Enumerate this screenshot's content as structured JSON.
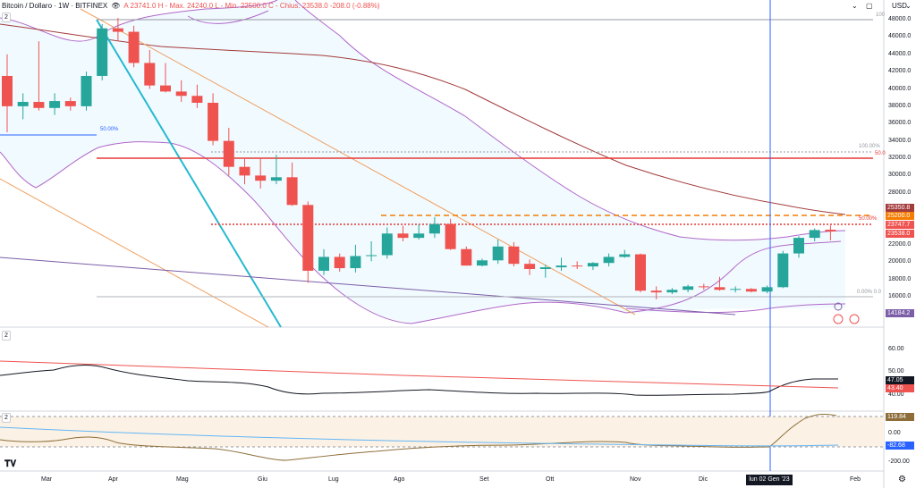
{
  "header": {
    "symbol": "Bitcoin / Dollaro · 1W · BITFINEX",
    "ohlc": "A 23741.0  H - Max. 24240.0  L - Min. 22500.0  C - Chius. 23538.0  -208.0 (-0.88%)",
    "currency": "USD",
    "pane_tag_main": "2",
    "pane_tag_osc1": "2",
    "pane_tag_osc2": "2"
  },
  "colors": {
    "bull": "#26a69a",
    "bear": "#ef5350",
    "bb": "#b068c8",
    "ma": "#a33b3b",
    "trend_cyan": "#25b9d0",
    "trend_orange": "#f0a060",
    "fib": "#e06030",
    "cursor": "#2962ff"
  },
  "price_axis": {
    "ticks": [
      "48000.0",
      "46000.0",
      "44000.0",
      "42000.0",
      "40000.0",
      "38000.0",
      "36000.0",
      "34000.0",
      "32000.0",
      "30000.0",
      "28000.0",
      "26000.0",
      "22000.0",
      "20000.0",
      "18000.0",
      "16000.0"
    ],
    "badges": [
      {
        "text": "25350.8",
        "color": "#a33b3b"
      },
      {
        "text": "25200.0",
        "color": "#f57c00"
      },
      {
        "text": "23747.7",
        "color": "#ef5350"
      },
      {
        "text": "23538.0",
        "color": "#ef5350"
      },
      {
        "text": "14184.2",
        "color": "#7b5ea7"
      }
    ],
    "tag_100": "100",
    "fib_100": "100.00%",
    "fib_50": "50.00%",
    "fib_50_right": "50.0",
    "fib_0": "0.00% 0.0",
    "left_fib_50": "50.00%"
  },
  "osc1": {
    "ticks": [
      "60.00",
      "50.00",
      "40.00"
    ],
    "badges": [
      {
        "text": "47.05",
        "color": "#131722"
      },
      {
        "text": "43.40",
        "color": "#ef5350"
      }
    ]
  },
  "osc2": {
    "ticks": [
      "0.00",
      "-200.00"
    ],
    "badges": [
      {
        "text": "119.84",
        "color": "#8d6e3a"
      },
      {
        "text": "-82.68",
        "color": "#2962ff"
      }
    ]
  },
  "time_axis": {
    "months": [
      "Mar",
      "Apr",
      "Mag",
      "Giu",
      "Lug",
      "Ago",
      "Set",
      "Ott",
      "Nov",
      "Dic",
      "Feb"
    ],
    "cursor_label": "lun 02 Gen '23"
  },
  "chart_data": {
    "type": "candlestick",
    "title": "Bitcoin / Dollaro · 1W · BITFINEX",
    "ylim": [
      13500,
      49000
    ],
    "candles": [
      {
        "o": 41500,
        "h": 44000,
        "l": 35000,
        "c": 38000
      },
      {
        "o": 38000,
        "h": 39500,
        "l": 36500,
        "c": 38500
      },
      {
        "o": 38500,
        "h": 45500,
        "l": 37500,
        "c": 37800
      },
      {
        "o": 37800,
        "h": 39500,
        "l": 37000,
        "c": 38600
      },
      {
        "o": 38600,
        "h": 39000,
        "l": 37500,
        "c": 38000
      },
      {
        "o": 38000,
        "h": 42000,
        "l": 37500,
        "c": 41500
      },
      {
        "o": 41500,
        "h": 47500,
        "l": 41000,
        "c": 47000
      },
      {
        "o": 47000,
        "h": 48200,
        "l": 45500,
        "c": 46600
      },
      {
        "o": 46600,
        "h": 47300,
        "l": 42500,
        "c": 43000
      },
      {
        "o": 43000,
        "h": 44500,
        "l": 40000,
        "c": 40400
      },
      {
        "o": 40400,
        "h": 43000,
        "l": 39600,
        "c": 39700
      },
      {
        "o": 39700,
        "h": 41000,
        "l": 38500,
        "c": 39200
      },
      {
        "o": 39200,
        "h": 40500,
        "l": 37800,
        "c": 38400
      },
      {
        "o": 38400,
        "h": 39500,
        "l": 33500,
        "c": 34000
      },
      {
        "o": 34000,
        "h": 35500,
        "l": 30000,
        "c": 31000
      },
      {
        "o": 31000,
        "h": 32000,
        "l": 29000,
        "c": 30000
      },
      {
        "o": 30000,
        "h": 32000,
        "l": 28500,
        "c": 29400
      },
      {
        "o": 29400,
        "h": 32400,
        "l": 29000,
        "c": 29800
      },
      {
        "o": 29800,
        "h": 31500,
        "l": 26500,
        "c": 26600
      },
      {
        "o": 26600,
        "h": 27000,
        "l": 17600,
        "c": 19000
      },
      {
        "o": 19000,
        "h": 21500,
        "l": 18500,
        "c": 20600
      },
      {
        "o": 20600,
        "h": 21000,
        "l": 18900,
        "c": 19300
      },
      {
        "o": 19300,
        "h": 22000,
        "l": 18800,
        "c": 20700
      },
      {
        "o": 20700,
        "h": 22400,
        "l": 20100,
        "c": 20800
      },
      {
        "o": 20800,
        "h": 24000,
        "l": 20400,
        "c": 23300
      },
      {
        "o": 23300,
        "h": 24200,
        "l": 22400,
        "c": 22800
      },
      {
        "o": 22800,
        "h": 24400,
        "l": 22600,
        "c": 23300
      },
      {
        "o": 23300,
        "h": 25200,
        "l": 22800,
        "c": 24400
      },
      {
        "o": 24400,
        "h": 25000,
        "l": 21400,
        "c": 21500
      },
      {
        "o": 21500,
        "h": 21800,
        "l": 19600,
        "c": 19600
      },
      {
        "o": 19600,
        "h": 20400,
        "l": 19500,
        "c": 20200
      },
      {
        "o": 20200,
        "h": 22600,
        "l": 19800,
        "c": 21800
      },
      {
        "o": 21800,
        "h": 22300,
        "l": 19500,
        "c": 19800
      },
      {
        "o": 19800,
        "h": 20300,
        "l": 18500,
        "c": 19200
      },
      {
        "o": 19200,
        "h": 19700,
        "l": 18200,
        "c": 19400
      },
      {
        "o": 19400,
        "h": 20500,
        "l": 19000,
        "c": 19600
      },
      {
        "o": 19600,
        "h": 20100,
        "l": 19200,
        "c": 19500
      },
      {
        "o": 19500,
        "h": 20000,
        "l": 19100,
        "c": 19900
      },
      {
        "o": 19900,
        "h": 21000,
        "l": 19500,
        "c": 20600
      },
      {
        "o": 20600,
        "h": 21400,
        "l": 20500,
        "c": 20900
      },
      {
        "o": 20900,
        "h": 21000,
        "l": 16500,
        "c": 16700
      },
      {
        "o": 16700,
        "h": 17200,
        "l": 15700,
        "c": 16500
      },
      {
        "o": 16500,
        "h": 17000,
        "l": 16300,
        "c": 16800
      },
      {
        "o": 16800,
        "h": 17400,
        "l": 16500,
        "c": 17200
      },
      {
        "o": 17200,
        "h": 17500,
        "l": 16800,
        "c": 17100
      },
      {
        "o": 17100,
        "h": 18300,
        "l": 16700,
        "c": 16800
      },
      {
        "o": 16800,
        "h": 17200,
        "l": 16500,
        "c": 16900
      },
      {
        "o": 16900,
        "h": 17000,
        "l": 16500,
        "c": 16600
      },
      {
        "o": 16600,
        "h": 17300,
        "l": 16400,
        "c": 17100
      },
      {
        "o": 17100,
        "h": 21300,
        "l": 17000,
        "c": 21000
      },
      {
        "o": 21000,
        "h": 23000,
        "l": 20500,
        "c": 22800
      },
      {
        "o": 22800,
        "h": 23900,
        "l": 22400,
        "c": 23700
      },
      {
        "o": 23741,
        "h": 24240,
        "l": 22500,
        "c": 23538
      }
    ]
  }
}
